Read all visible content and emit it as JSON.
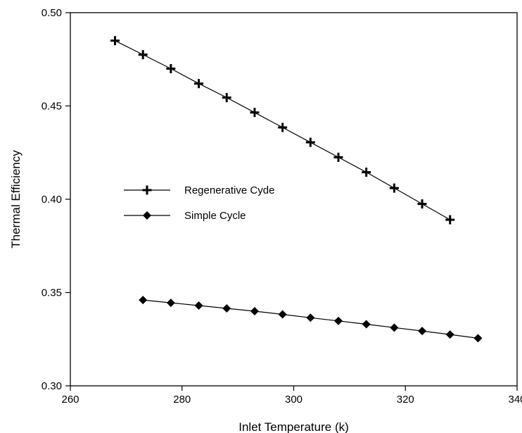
{
  "chart_data": {
    "type": "line",
    "title": "",
    "xlabel": "Inlet Temperature (k)",
    "ylabel": "Thermal Efficiency",
    "xlim": [
      260,
      340
    ],
    "ylim": [
      0.3,
      0.5
    ],
    "xticks": [
      260,
      280,
      300,
      320,
      340
    ],
    "xtick_labels": [
      "260",
      "280",
      "300",
      "320",
      "340"
    ],
    "yticks": [
      0.3,
      0.35,
      0.4,
      0.45,
      0.5
    ],
    "ytick_labels": [
      "0.30",
      "0.35",
      "0.40",
      "0.45",
      "0.50"
    ],
    "grid": false,
    "legend_position": "middle-left",
    "series": [
      {
        "name": "Regenerative Cyde",
        "marker": "plus",
        "color": "#000000",
        "x": [
          268,
          273,
          278,
          283,
          288,
          293,
          298,
          303,
          308,
          313,
          318,
          323,
          328
        ],
        "y": [
          0.485,
          0.4775,
          0.47,
          0.462,
          0.4545,
          0.4465,
          0.4385,
          0.4305,
          0.4225,
          0.4145,
          0.406,
          0.3975,
          0.389
        ]
      },
      {
        "name": "Simple Cycle",
        "marker": "diamond",
        "color": "#000000",
        "x": [
          273,
          278,
          283,
          288,
          293,
          298,
          303,
          308,
          313,
          318,
          323,
          328,
          333
        ],
        "y": [
          0.346,
          0.3445,
          0.343,
          0.3415,
          0.34,
          0.3383,
          0.3365,
          0.3348,
          0.333,
          0.3312,
          0.3294,
          0.3275,
          0.3255
        ]
      }
    ]
  }
}
